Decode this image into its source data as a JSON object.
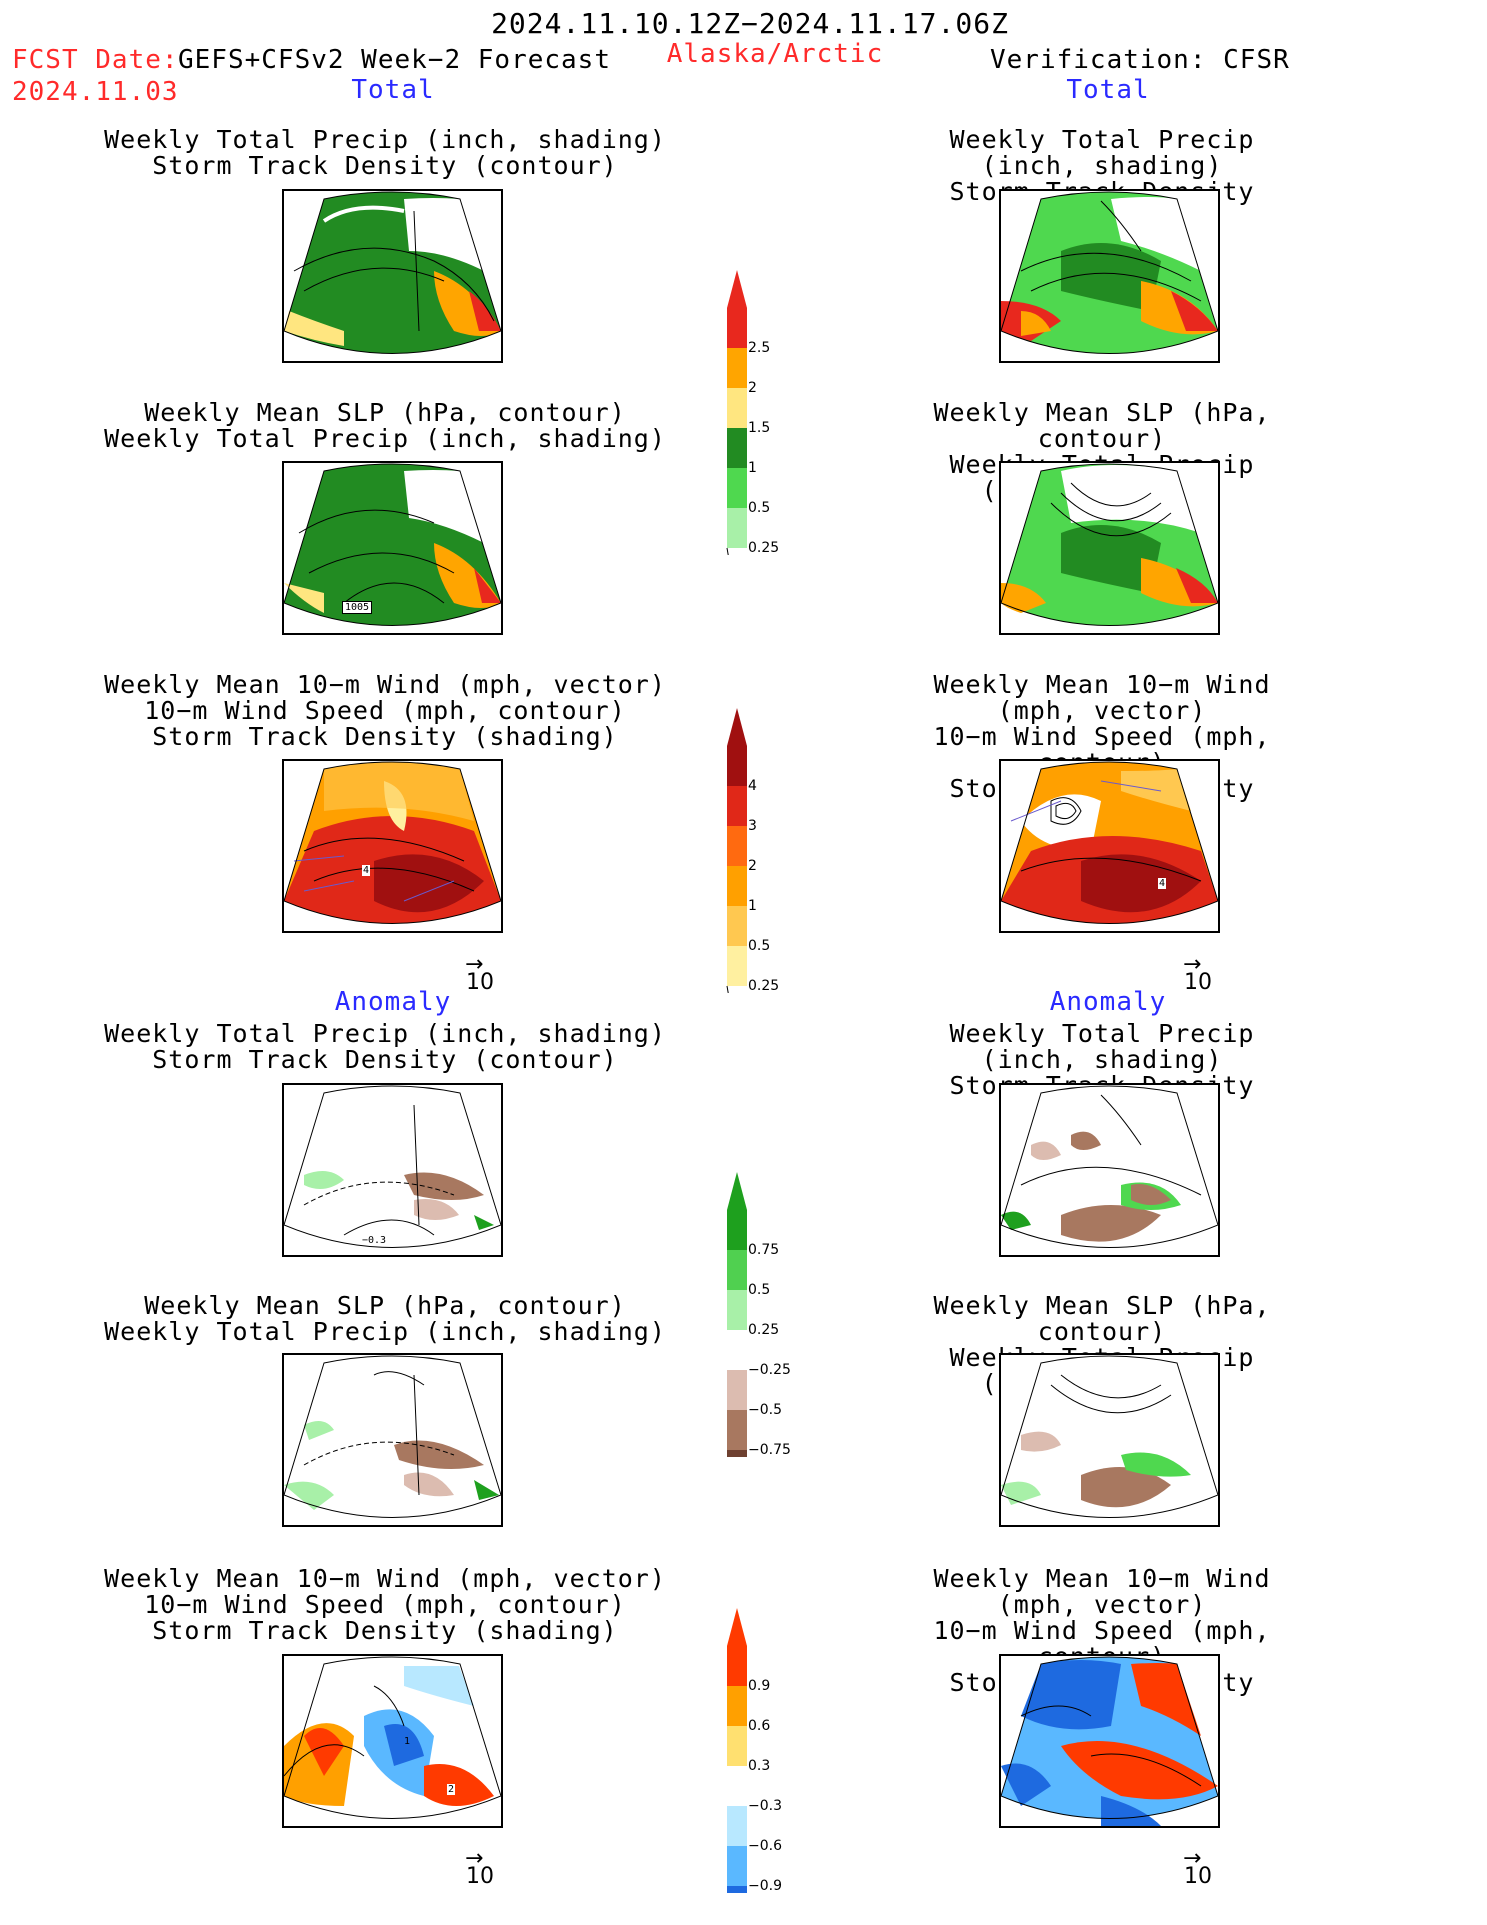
{
  "header": {
    "period": "2024.11.10.12Z−2024.11.17.06Z",
    "fcst_label": "FCST Date:",
    "model": "GEFS+CFSv2 Week−2 Forecast",
    "fcst_date": "2024.11.03",
    "region": "Alaska/Arctic",
    "verification": "Verification: CFSR"
  },
  "sections": {
    "total": "Total",
    "anomaly": "Anomaly"
  },
  "titles": {
    "precip_storm": [
      "Weekly Total Precip (inch, shading)",
      "Storm Track Density (contour)"
    ],
    "slp_precip": [
      "Weekly Mean SLP (hPa, contour)",
      "Weekly Total Precip (inch, shading)"
    ],
    "wind_storm": [
      "Weekly Mean 10−m Wind (mph, vector)",
      "10−m Wind Speed (mph, contour)",
      "Storm Track Density (shading)"
    ]
  },
  "panel_labels": {
    "slp_contour": "1005",
    "wind_contour_a": "4",
    "wind_contour_b": "4",
    "anom_precip_contour": "−0.3",
    "anom_wind_contour_a": "1",
    "anom_wind_contour_b": "2"
  },
  "vector_ref": "10",
  "colorbars": {
    "precip_total": {
      "labels": [
        "2.5",
        "2",
        "1.5",
        "1",
        "0.5",
        "0.25"
      ],
      "colors": [
        "#e8281e",
        "#ffa500",
        "#ffe680",
        "#228b22",
        "#4fd84f",
        "#a8f0a8"
      ]
    },
    "storm_total": {
      "labels": [
        "4",
        "3",
        "2",
        "1",
        "0.5",
        "0.25"
      ],
      "colors": [
        "#a01010",
        "#e02818",
        "#ff6a10",
        "#ffa000",
        "#ffc850",
        "#fff0a0"
      ]
    },
    "precip_anom": {
      "labels": [
        "0.75",
        "0.5",
        "0.25",
        "−0.25",
        "−0.5",
        "−0.75"
      ],
      "colors": [
        "#1ea01e",
        "#50d050",
        "#a8f0a8",
        "#ffffff",
        "#dcbcb0",
        "#a87860",
        "#6e4030"
      ]
    },
    "storm_anom": {
      "labels": [
        "0.9",
        "0.6",
        "0.3",
        "−0.3",
        "−0.6",
        "−0.9"
      ],
      "colors": [
        "#ff3a00",
        "#ffa000",
        "#ffe070",
        "#ffffff",
        "#b8e8ff",
        "#5ab8ff",
        "#1e6ae0"
      ]
    }
  }
}
